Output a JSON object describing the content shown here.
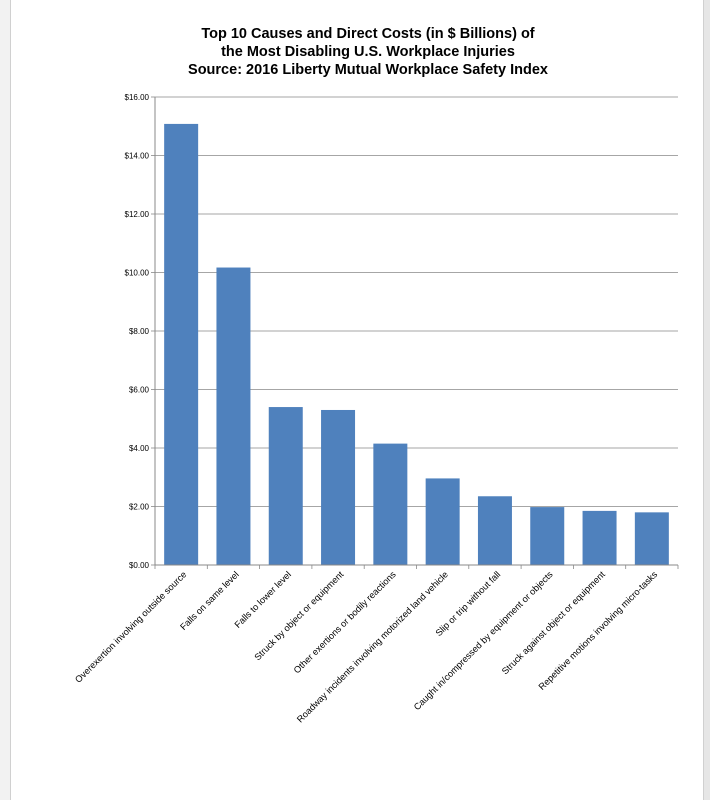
{
  "chart_data": {
    "type": "bar",
    "title_lines": [
      "Top 10 Causes and Direct Costs (in $ Billions) of",
      "the Most Disabling U.S. Workplace Injuries",
      "Source: 2016 Liberty Mutual Workplace Safety Index"
    ],
    "categories": [
      "Overexertion involving outside source",
      "Falls on same level",
      "Falls to lower level",
      "Struck by object or equipment",
      "Other exertions or bodily reactions",
      "Roadway incidents involving motorized land vehicle",
      "Slip or trip without fall",
      "Caught in/compressed by equipment or objects",
      "Struck against object or equipment",
      "Repetitive motions involving micro-tasks"
    ],
    "values": [
      15.08,
      10.17,
      5.4,
      5.3,
      4.15,
      2.96,
      2.35,
      1.98,
      1.85,
      1.8
    ],
    "ylim": [
      0,
      16
    ],
    "yticks": [
      0,
      2,
      4,
      6,
      8,
      10,
      12,
      14,
      16
    ],
    "ytick_labels": [
      "$0.00",
      "$2.00",
      "$4.00",
      "$6.00",
      "$8.00",
      "$10.00",
      "$12.00",
      "$14.00",
      "$16.00"
    ],
    "xlabel": "",
    "ylabel": "",
    "grid": "horizontal",
    "legend": "none",
    "colors": {
      "bar": "#4f81bd",
      "grid": "#888888",
      "axis": "#888888"
    }
  }
}
